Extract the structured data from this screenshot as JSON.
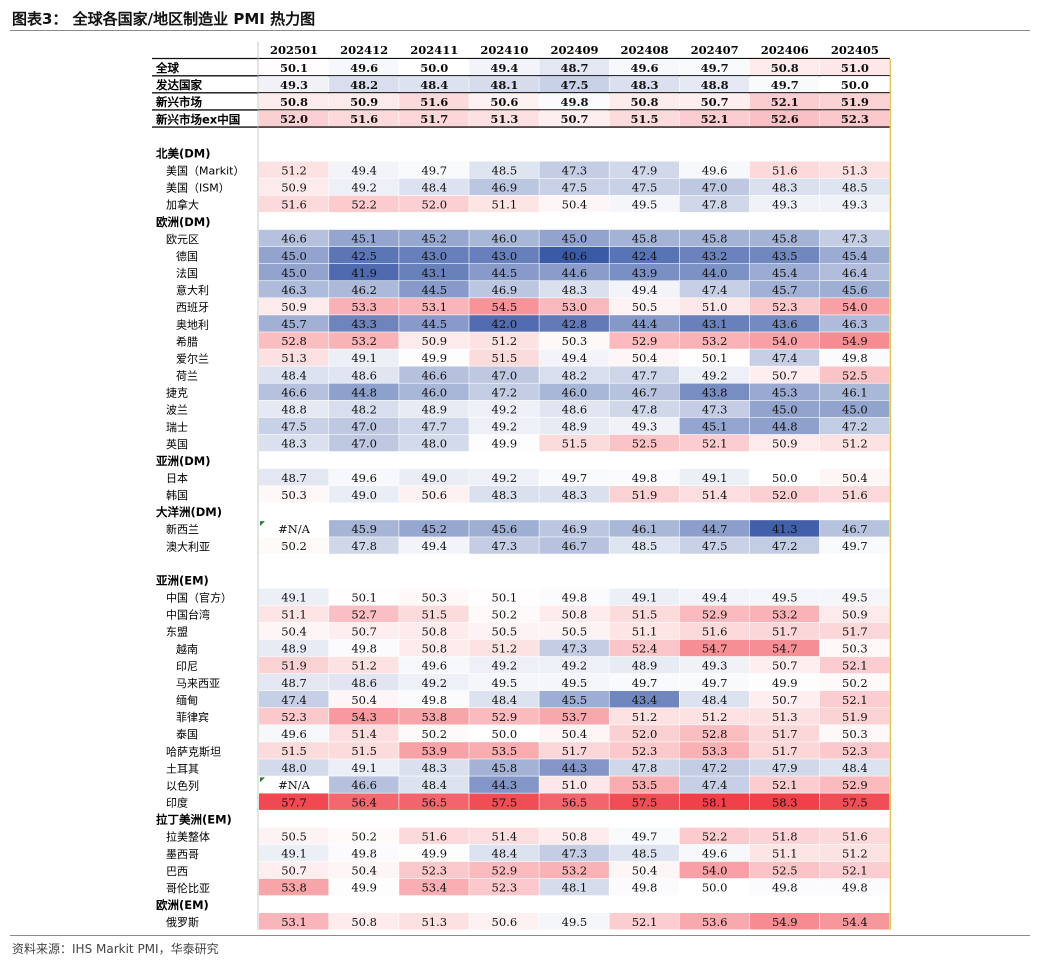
{
  "title": "图表3： 全球各国家/地区制造业 PMI 热力图",
  "source": "资料来源：IHS Markit PMI，华泰研究",
  "colors": {
    "low": "#3b5aa6",
    "mid": "#ffffff",
    "high": "#f0414b",
    "rule": "#8a8a8a"
  },
  "chart_data": {
    "type": "heatmap",
    "columns": [
      "202501",
      "202412",
      "202411",
      "202410",
      "202409",
      "202408",
      "202407",
      "202406",
      "202405"
    ],
    "color_scale": {
      "low": 41,
      "mid": 50,
      "high": 58
    },
    "rows": [
      {
        "label": "全球",
        "kind": "summary",
        "values": [
          50.1,
          49.6,
          50.0,
          49.4,
          48.7,
          49.6,
          49.7,
          50.8,
          51.0
        ]
      },
      {
        "label": "发达国家",
        "kind": "summary",
        "values": [
          49.3,
          48.2,
          48.4,
          48.1,
          47.5,
          48.3,
          48.8,
          49.7,
          50.0
        ]
      },
      {
        "label": "新兴市场",
        "kind": "summary",
        "values": [
          50.8,
          50.9,
          51.6,
          50.6,
          49.8,
          50.8,
          50.7,
          52.1,
          51.9
        ]
      },
      {
        "label": "新兴市场ex中国",
        "kind": "summary",
        "values": [
          52.0,
          51.6,
          51.7,
          51.3,
          50.7,
          51.5,
          52.1,
          52.6,
          52.3
        ]
      },
      {
        "label": "",
        "kind": "spacer"
      },
      {
        "label": "北美(DM)",
        "kind": "section"
      },
      {
        "label": "美国（Markit）",
        "kind": "data",
        "indent": 1,
        "values": [
          51.2,
          49.4,
          49.7,
          48.5,
          47.3,
          47.9,
          49.6,
          51.6,
          51.3
        ]
      },
      {
        "label": "美国（ISM）",
        "kind": "data",
        "indent": 1,
        "values": [
          50.9,
          49.2,
          48.4,
          46.9,
          47.5,
          47.5,
          47.0,
          48.3,
          48.5
        ]
      },
      {
        "label": "加拿大",
        "kind": "data",
        "indent": 1,
        "values": [
          51.6,
          52.2,
          52.0,
          51.1,
          50.4,
          49.5,
          47.8,
          49.3,
          49.3
        ]
      },
      {
        "label": "欧洲(DM)",
        "kind": "section"
      },
      {
        "label": "欧元区",
        "kind": "data",
        "indent": 1,
        "values": [
          46.6,
          45.1,
          45.2,
          46.0,
          45.0,
          45.8,
          45.8,
          45.8,
          47.3
        ]
      },
      {
        "label": "德国",
        "kind": "data",
        "indent": 2,
        "values": [
          45.0,
          42.5,
          43.0,
          43.0,
          40.6,
          42.4,
          43.2,
          43.5,
          45.4
        ]
      },
      {
        "label": "法国",
        "kind": "data",
        "indent": 2,
        "values": [
          45.0,
          41.9,
          43.1,
          44.5,
          44.6,
          43.9,
          44.0,
          45.4,
          46.4
        ]
      },
      {
        "label": "意大利",
        "kind": "data",
        "indent": 2,
        "values": [
          46.3,
          46.2,
          44.5,
          46.9,
          48.3,
          49.4,
          47.4,
          45.7,
          45.6
        ]
      },
      {
        "label": "西班牙",
        "kind": "data",
        "indent": 2,
        "values": [
          50.9,
          53.3,
          53.1,
          54.5,
          53.0,
          50.5,
          51.0,
          52.3,
          54.0
        ]
      },
      {
        "label": "奥地利",
        "kind": "data",
        "indent": 2,
        "values": [
          45.7,
          43.3,
          44.5,
          42.0,
          42.8,
          44.4,
          43.1,
          43.6,
          46.3
        ]
      },
      {
        "label": "希腊",
        "kind": "data",
        "indent": 2,
        "values": [
          52.8,
          53.2,
          50.9,
          51.2,
          50.3,
          52.9,
          53.2,
          54.0,
          54.9
        ]
      },
      {
        "label": "爱尔兰",
        "kind": "data",
        "indent": 2,
        "values": [
          51.3,
          49.1,
          49.9,
          51.5,
          49.4,
          50.4,
          50.1,
          47.4,
          49.8
        ]
      },
      {
        "label": "荷兰",
        "kind": "data",
        "indent": 2,
        "values": [
          48.4,
          48.6,
          46.6,
          47.0,
          48.2,
          47.7,
          49.2,
          50.7,
          52.5
        ]
      },
      {
        "label": "捷克",
        "kind": "data",
        "indent": 1,
        "values": [
          46.6,
          44.8,
          46.0,
          47.2,
          46.0,
          46.7,
          43.8,
          45.3,
          46.1
        ]
      },
      {
        "label": "波兰",
        "kind": "data",
        "indent": 1,
        "values": [
          48.8,
          48.2,
          48.9,
          49.2,
          48.6,
          47.8,
          47.3,
          45.0,
          45.0
        ]
      },
      {
        "label": "瑞士",
        "kind": "data",
        "indent": 1,
        "values": [
          47.5,
          47.0,
          47.7,
          49.2,
          48.9,
          49.3,
          45.1,
          44.8,
          47.2
        ]
      },
      {
        "label": "英国",
        "kind": "data",
        "indent": 1,
        "values": [
          48.3,
          47.0,
          48.0,
          49.9,
          51.5,
          52.5,
          52.1,
          50.9,
          51.2
        ]
      },
      {
        "label": "亚洲(DM)",
        "kind": "section"
      },
      {
        "label": "日本",
        "kind": "data",
        "indent": 1,
        "values": [
          48.7,
          49.6,
          49.0,
          49.2,
          49.7,
          49.8,
          49.1,
          50.0,
          50.4
        ]
      },
      {
        "label": "韩国",
        "kind": "data",
        "indent": 1,
        "values": [
          50.3,
          49.0,
          50.6,
          48.3,
          48.3,
          51.9,
          51.4,
          52.0,
          51.6
        ]
      },
      {
        "label": "大洋洲(DM)",
        "kind": "section"
      },
      {
        "label": "新西兰",
        "kind": "data",
        "indent": 1,
        "values": [
          "#N/A",
          45.9,
          45.2,
          45.6,
          46.9,
          46.1,
          44.7,
          41.3,
          46.7
        ]
      },
      {
        "label": "澳大利亚",
        "kind": "data",
        "indent": 1,
        "values": [
          50.2,
          47.8,
          49.4,
          47.3,
          46.7,
          48.5,
          47.5,
          47.2,
          49.7
        ]
      },
      {
        "label": "",
        "kind": "spacer"
      },
      {
        "label": "亚洲(EM)",
        "kind": "section"
      },
      {
        "label": "中国（官方）",
        "kind": "data",
        "indent": 1,
        "values": [
          49.1,
          50.1,
          50.3,
          50.1,
          49.8,
          49.1,
          49.4,
          49.5,
          49.5
        ]
      },
      {
        "label": "中国台湾",
        "kind": "data",
        "indent": 1,
        "values": [
          51.1,
          52.7,
          51.5,
          50.2,
          50.8,
          51.5,
          52.9,
          53.2,
          50.9
        ]
      },
      {
        "label": "东盟",
        "kind": "data",
        "indent": 1,
        "values": [
          50.4,
          50.7,
          50.8,
          50.5,
          50.5,
          51.1,
          51.6,
          51.7,
          51.7
        ]
      },
      {
        "label": "越南",
        "kind": "data",
        "indent": 2,
        "values": [
          48.9,
          49.8,
          50.8,
          51.2,
          47.3,
          52.4,
          54.7,
          54.7,
          50.3
        ]
      },
      {
        "label": "印尼",
        "kind": "data",
        "indent": 2,
        "values": [
          51.9,
          51.2,
          49.6,
          49.2,
          49.2,
          48.9,
          49.3,
          50.7,
          52.1
        ]
      },
      {
        "label": "马来西亚",
        "kind": "data",
        "indent": 2,
        "values": [
          48.7,
          48.6,
          49.2,
          49.5,
          49.5,
          49.7,
          49.7,
          49.9,
          50.2
        ]
      },
      {
        "label": "缅甸",
        "kind": "data",
        "indent": 2,
        "values": [
          47.4,
          50.4,
          49.8,
          48.4,
          45.5,
          43.4,
          48.4,
          50.7,
          52.1
        ]
      },
      {
        "label": "菲律宾",
        "kind": "data",
        "indent": 2,
        "values": [
          52.3,
          54.3,
          53.8,
          52.9,
          53.7,
          51.2,
          51.2,
          51.3,
          51.9
        ]
      },
      {
        "label": "泰国",
        "kind": "data",
        "indent": 2,
        "values": [
          49.6,
          51.4,
          50.2,
          50.0,
          50.4,
          52.0,
          52.8,
          51.7,
          50.3
        ]
      },
      {
        "label": "哈萨克斯坦",
        "kind": "data",
        "indent": 1,
        "values": [
          51.5,
          51.5,
          53.9,
          53.5,
          51.7,
          52.3,
          53.3,
          51.7,
          52.3
        ]
      },
      {
        "label": "土耳其",
        "kind": "data",
        "indent": 1,
        "values": [
          48.0,
          49.1,
          48.3,
          45.8,
          44.3,
          47.8,
          47.2,
          47.9,
          48.4
        ]
      },
      {
        "label": "以色列",
        "kind": "data",
        "indent": 1,
        "values": [
          "#N/A",
          46.6,
          48.4,
          44.3,
          51.0,
          53.5,
          47.4,
          52.1,
          52.9
        ]
      },
      {
        "label": "印度",
        "kind": "data",
        "indent": 1,
        "values": [
          57.7,
          56.4,
          56.5,
          57.5,
          56.5,
          57.5,
          58.1,
          58.3,
          57.5
        ]
      },
      {
        "label": "拉丁美洲(EM)",
        "kind": "section"
      },
      {
        "label": "拉美整体",
        "kind": "data",
        "indent": 1,
        "values": [
          50.5,
          50.2,
          51.6,
          51.4,
          50.8,
          49.7,
          52.2,
          51.8,
          51.6
        ]
      },
      {
        "label": "墨西哥",
        "kind": "data",
        "indent": 1,
        "values": [
          49.1,
          49.8,
          49.9,
          48.4,
          47.3,
          48.5,
          49.6,
          51.1,
          51.2
        ]
      },
      {
        "label": "巴西",
        "kind": "data",
        "indent": 1,
        "values": [
          50.7,
          50.4,
          52.3,
          52.9,
          53.2,
          50.4,
          54.0,
          52.5,
          52.1
        ]
      },
      {
        "label": "哥伦比亚",
        "kind": "data",
        "indent": 1,
        "values": [
          53.8,
          49.9,
          53.4,
          52.3,
          48.1,
          49.8,
          50.0,
          49.8,
          49.8
        ]
      },
      {
        "label": "欧洲(EM)",
        "kind": "section"
      },
      {
        "label": "俄罗斯",
        "kind": "data",
        "indent": 1,
        "values": [
          53.1,
          50.8,
          51.3,
          50.6,
          49.5,
          52.1,
          53.6,
          54.9,
          54.4
        ]
      }
    ]
  }
}
